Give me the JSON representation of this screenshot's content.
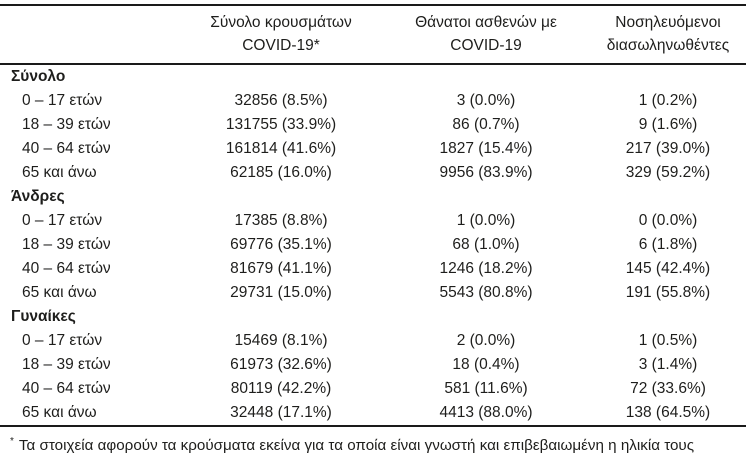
{
  "colors": {
    "text": "#1e1e1c",
    "rule": "#1a1a1a",
    "background": "#ffffff"
  },
  "table": {
    "columns": [
      {
        "line1": "Σύνολο κρουσμάτων",
        "line2": "COVID-19*"
      },
      {
        "line1": "Θάνατοι ασθενών με",
        "line2": "COVID-19"
      },
      {
        "line1": "Νοσηλευόμενοι",
        "line2": "διασωληνωθέντες"
      }
    ],
    "sections": [
      {
        "title": "Σύνολο",
        "rows": [
          {
            "label": "0 – 17 ετών",
            "cases": "32856 (8.5%)",
            "deaths": "3 (0.0%)",
            "intubated": "1 (0.2%)"
          },
          {
            "label": "18 – 39 ετών",
            "cases": "131755 (33.9%)",
            "deaths": "86 (0.7%)",
            "intubated": "9 (1.6%)"
          },
          {
            "label": "40 – 64 ετών",
            "cases": "161814 (41.6%)",
            "deaths": "1827 (15.4%)",
            "intubated": "217 (39.0%)"
          },
          {
            "label": "65 και άνω",
            "cases": "62185 (16.0%)",
            "deaths": "9956 (83.9%)",
            "intubated": "329 (59.2%)"
          }
        ]
      },
      {
        "title": "Άνδρες",
        "rows": [
          {
            "label": "0 – 17 ετών",
            "cases": "17385 (8.8%)",
            "deaths": "1 (0.0%)",
            "intubated": "0 (0.0%)"
          },
          {
            "label": "18 – 39 ετών",
            "cases": "69776 (35.1%)",
            "deaths": "68 (1.0%)",
            "intubated": "6 (1.8%)"
          },
          {
            "label": "40 – 64 ετών",
            "cases": "81679 (41.1%)",
            "deaths": "1246 (18.2%)",
            "intubated": "145 (42.4%)"
          },
          {
            "label": "65 και άνω",
            "cases": "29731 (15.0%)",
            "deaths": "5543 (80.8%)",
            "intubated": "191 (55.8%)"
          }
        ]
      },
      {
        "title": "Γυναίκες",
        "rows": [
          {
            "label": "0 – 17 ετών",
            "cases": "15469 (8.1%)",
            "deaths": "2 (0.0%)",
            "intubated": "1 (0.5%)"
          },
          {
            "label": "18 – 39 ετών",
            "cases": "61973 (32.6%)",
            "deaths": "18 (0.4%)",
            "intubated": "3 (1.4%)"
          },
          {
            "label": "40 – 64 ετών",
            "cases": "80119 (42.2%)",
            "deaths": "581 (11.6%)",
            "intubated": "72 (33.6%)"
          },
          {
            "label": "65 και άνω",
            "cases": "32448 (17.1%)",
            "deaths": "4413 (88.0%)",
            "intubated": "138 (64.5%)"
          }
        ]
      }
    ],
    "footnote_marker": "*",
    "footnote": "Τα στοιχεία αφορούν τα κρούσματα εκείνα για τα οποία είναι γνωστή και επιβεβαιωμένη η ηλικία τους"
  }
}
